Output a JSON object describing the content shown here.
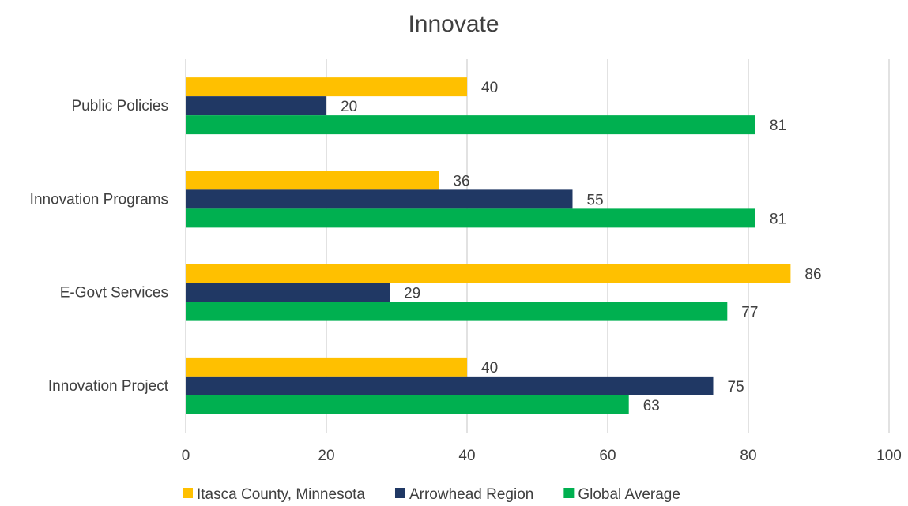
{
  "chart_data": {
    "type": "bar",
    "orientation": "horizontal",
    "title": "Innovate",
    "xlabel": "",
    "ylabel": "",
    "xlim": [
      0,
      100
    ],
    "x_ticks": [
      0,
      20,
      40,
      60,
      80,
      100
    ],
    "grid": true,
    "legend_position": "bottom",
    "categories": [
      "Public Policies",
      "Innovation Programs",
      "E-Govt Services",
      "Innovation Project"
    ],
    "series": [
      {
        "name": "Itasca County, Minnesota",
        "color": "#FFC000",
        "values": [
          40,
          36,
          86,
          40
        ]
      },
      {
        "name": "Arrowhead Region",
        "color": "#203864",
        "values": [
          20,
          55,
          29,
          75
        ]
      },
      {
        "name": "Global Average",
        "color": "#00B050",
        "values": [
          81,
          81,
          77,
          63
        ]
      }
    ]
  }
}
